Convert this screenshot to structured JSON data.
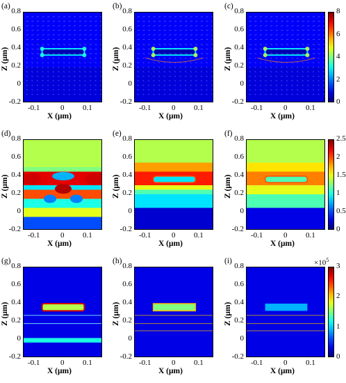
{
  "chart_data": [
    {
      "type": "heatmap",
      "panel_label": "(a)",
      "xlabel": "X (μm)",
      "ylabel": "Z (μm)",
      "xlim": [
        -0.15,
        0.15
      ],
      "ylim": [
        -0.2,
        0.8
      ],
      "xticks": [
        "-0.1",
        "0",
        "0.1"
      ],
      "yticks": [
        "0.8",
        "0.6",
        "0.4",
        "0.2",
        "0",
        "-0.2"
      ],
      "row": 0
    },
    {
      "type": "heatmap",
      "panel_label": "(b)",
      "xlabel": "X (μm)",
      "ylabel": "Z (μm)",
      "xlim": [
        -0.15,
        0.15
      ],
      "ylim": [
        -0.2,
        0.8
      ],
      "xticks": [
        "-0.1",
        "0",
        "0.1"
      ],
      "yticks": [
        "0.8",
        "0.6",
        "0.4",
        "0.2",
        "0",
        "-0.2"
      ],
      "row": 0
    },
    {
      "type": "heatmap",
      "panel_label": "(c)",
      "xlabel": "X (μm)",
      "ylabel": "Z (μm)",
      "xlim": [
        -0.15,
        0.15
      ],
      "ylim": [
        -0.2,
        0.8
      ],
      "xticks": [
        "-0.1",
        "0",
        "0.1"
      ],
      "yticks": [
        "0.8",
        "0.6",
        "0.4",
        "0.2",
        "0",
        "-0.2"
      ],
      "row": 0,
      "colorbar": {
        "min": 0,
        "max": 8,
        "ticks": [
          "8",
          "6",
          "4",
          "2",
          "0"
        ]
      }
    },
    {
      "type": "heatmap",
      "panel_label": "(d)",
      "xlabel": "X (μm)",
      "ylabel": "Z (μm)",
      "xlim": [
        -0.15,
        0.15
      ],
      "ylim": [
        -0.2,
        0.8
      ],
      "xticks": [
        "-0.1",
        "0",
        "0.1"
      ],
      "yticks": [
        "0.8",
        "0.6",
        "0.4",
        "0.2",
        "0",
        "-0.2"
      ],
      "row": 1
    },
    {
      "type": "heatmap",
      "panel_label": "(e)",
      "xlabel": "X (μm)",
      "ylabel": "Z (μm)",
      "xlim": [
        -0.15,
        0.15
      ],
      "ylim": [
        -0.2,
        0.8
      ],
      "xticks": [
        "-0.1",
        "0",
        "0.1"
      ],
      "yticks": [
        "0.8",
        "0.6",
        "0.4",
        "0.2",
        "0",
        "-0.2"
      ],
      "row": 1
    },
    {
      "type": "heatmap",
      "panel_label": "(f)",
      "xlabel": "X (μm)",
      "ylabel": "Z (μm)",
      "xlim": [
        -0.15,
        0.15
      ],
      "ylim": [
        -0.2,
        0.8
      ],
      "xticks": [
        "-0.1",
        "0",
        "0.1"
      ],
      "yticks": [
        "0.8",
        "0.6",
        "0.4",
        "0.2",
        "0",
        "-0.2"
      ],
      "row": 1,
      "colorbar": {
        "min": 0,
        "max": 2.5,
        "ticks": [
          "2.5",
          "2",
          "1.5",
          "1",
          "0.5",
          "0"
        ]
      }
    },
    {
      "type": "heatmap",
      "panel_label": "(g)",
      "xlabel": "X (μm)",
      "ylabel": "Z (μm)",
      "xlim": [
        -0.15,
        0.15
      ],
      "ylim": [
        -0.2,
        0.8
      ],
      "xticks": [
        "-0.1",
        "0",
        "0.1"
      ],
      "yticks": [
        "0.8",
        "0.6",
        "0.4",
        "0.2",
        "0",
        "-0.2"
      ],
      "row": 2
    },
    {
      "type": "heatmap",
      "panel_label": "(h)",
      "xlabel": "X (μm)",
      "ylabel": "Z (μm)",
      "xlim": [
        -0.15,
        0.15
      ],
      "ylim": [
        -0.2,
        0.8
      ],
      "xticks": [
        "-0.1",
        "0",
        "0.1"
      ],
      "yticks": [
        "0.8",
        "0.6",
        "0.4",
        "0.2",
        "0",
        "-0.2"
      ],
      "row": 2
    },
    {
      "type": "heatmap",
      "panel_label": "(i)",
      "xlabel": "X (μm)",
      "ylabel": "Z (μm)",
      "xlim": [
        -0.15,
        0.15
      ],
      "ylim": [
        -0.2,
        0.8
      ],
      "xticks": [
        "-0.1",
        "0",
        "0.1"
      ],
      "yticks": [
        "0.8",
        "0.6",
        "0.4",
        "0.2",
        "0",
        "-0.2"
      ],
      "row": 2,
      "colorbar": {
        "min": 0,
        "max": 3,
        "ticks": [
          "3",
          "2",
          "1",
          "0"
        ],
        "exponent_label": "×10",
        "exponent": "5"
      }
    }
  ],
  "colormap": "jet"
}
